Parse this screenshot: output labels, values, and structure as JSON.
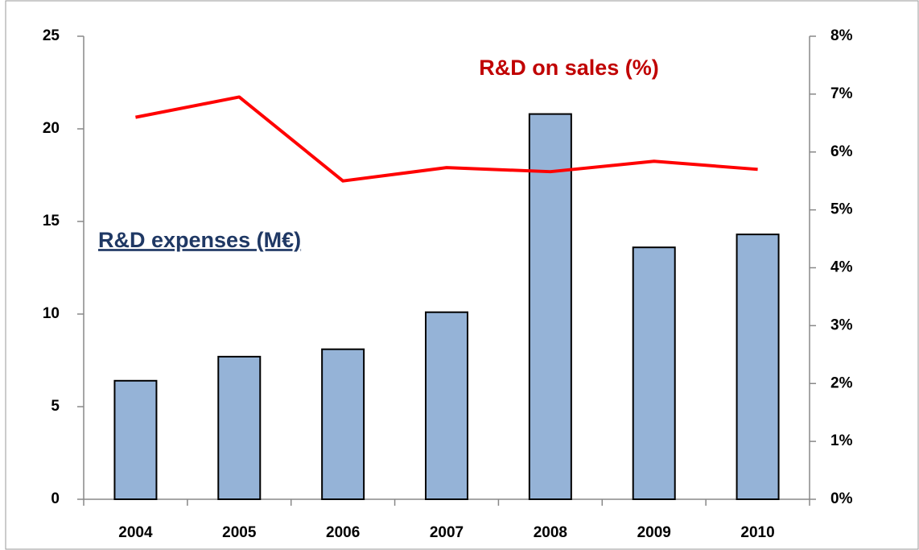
{
  "chart_data": {
    "type": "bar-line",
    "categories": [
      "2004",
      "2005",
      "2006",
      "2007",
      "2008",
      "2009",
      "2010"
    ],
    "series": [
      {
        "name": "R&D expenses (M€)",
        "type": "bar",
        "color": "#95b3d7",
        "values": [
          6.4,
          7.7,
          8.1,
          10.1,
          20.8,
          13.6,
          14.3
        ]
      },
      {
        "name": "R&D on sales (%)",
        "type": "line",
        "axis": "y2",
        "color": "#ff0000",
        "values": [
          6.6,
          6.95,
          5.5,
          5.73,
          5.66,
          5.84,
          5.7
        ]
      }
    ],
    "ylim": [
      0,
      25
    ],
    "yticks": [
      0,
      5,
      10,
      15,
      20,
      25
    ],
    "y2lim": [
      0,
      8
    ],
    "y2ticks": [
      {
        "value": 0,
        "label": "0%"
      },
      {
        "value": 1,
        "label": "1%"
      },
      {
        "value": 2,
        "label": "2%"
      },
      {
        "value": 3,
        "label": "3%"
      },
      {
        "value": 4,
        "label": "4%"
      },
      {
        "value": 5,
        "label": "5%"
      },
      {
        "value": 6,
        "label": "6%"
      },
      {
        "value": 7,
        "label": "7%"
      },
      {
        "value": 8,
        "label": "8%"
      }
    ],
    "grid": false
  }
}
